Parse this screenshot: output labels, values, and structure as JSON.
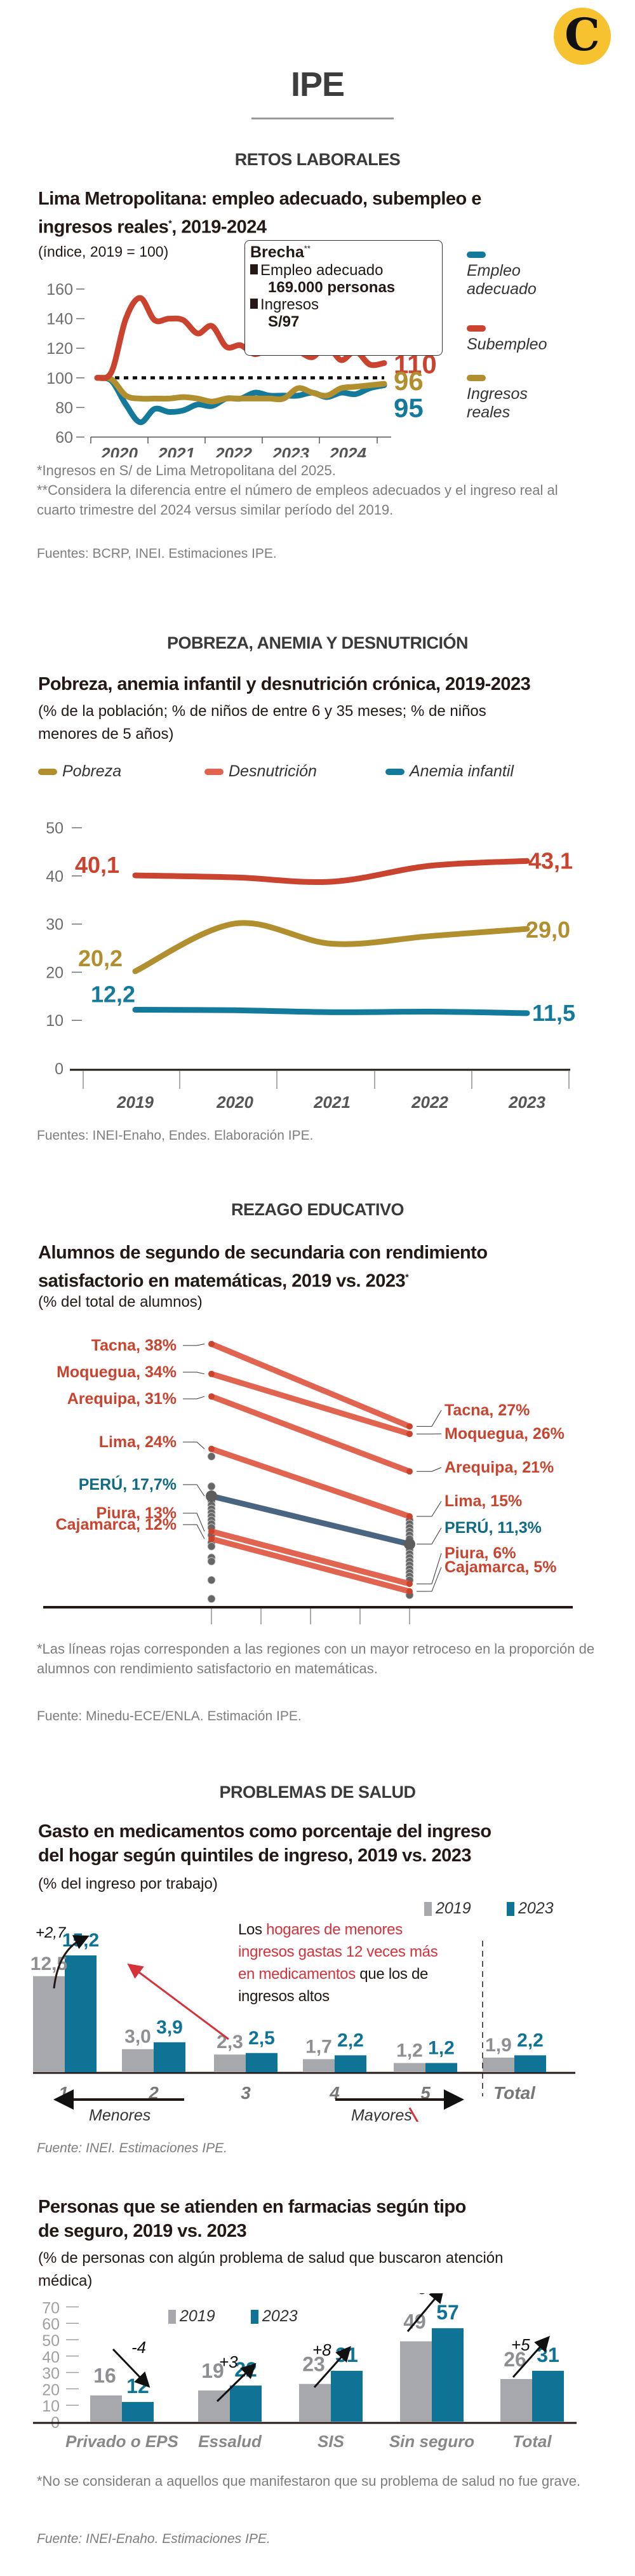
{
  "header": {
    "logo_letter": "C",
    "brand": "IPE"
  },
  "colors": {
    "empleo": "#137a9c",
    "subempleo": "#c9432e",
    "ingresos": "#b18f2e",
    "pobreza": "#b18f2e",
    "desnutricion": "#c9432e",
    "anemia": "#137a9c",
    "slope_red": "#e06450",
    "slope_peru": "#4a6580",
    "slope_grey": "#666666",
    "bar_2019": "#a6a8ab",
    "bar_2023": "#0f7396",
    "label_red": "#c9432e",
    "label_teal": "#0f6a85",
    "annotation_red": "#d6323a",
    "logo_yellow": "#f7c22f"
  },
  "sections": {
    "s1": "RETOS LABORALES",
    "s2": "POBREZA, ANEMIA Y DESNUTRICIÓN",
    "s3": "REZAGO EDUCATIVO",
    "s4": "PROBLEMAS DE SALUD"
  },
  "chart1": {
    "title": "Lima Metropolitana: empleo adecuado, subempleo e ingresos reales*, 2019-2024",
    "subtitle": "(índice, 2019 = 100)",
    "brecha": {
      "heading": "Brecha",
      "heading_mark": "**",
      "item1_label": "Empleo adecuado",
      "item1_value": "169.000 personas",
      "item2_label": "Ingresos",
      "item2_value": "S/97"
    },
    "legend": [
      {
        "label": "Empleo adecuado",
        "key": "empleo"
      },
      {
        "label": "Subempleo",
        "key": "subempleo"
      },
      {
        "label": "Ingresos reales",
        "key": "ingresos"
      }
    ],
    "end_labels": {
      "subempleo": "110",
      "ingresos": "96",
      "empleo": "95"
    },
    "note1": "*Ingresos en S/ de Lima Metropolitana del 2025.",
    "note2": "**Considera la diferencia entre el número de empleos adecuados y el ingreso real al cuarto trimestre del 2024 versus similar período del 2019.",
    "source": "Fuentes: BCRP, INEI. Estimaciones IPE."
  },
  "chart2": {
    "title": "Pobreza, anemia infantil y desnutrición crónica, 2019-2023",
    "subtitle": "(% de la población; % de niños de entre 6 y 35 meses; % de niños menores de 5 años)",
    "legend": [
      {
        "label": "Pobreza",
        "key": "pobreza"
      },
      {
        "label": "Desnutrición",
        "key": "desnutricion"
      },
      {
        "label": "Anemia infantil",
        "key": "anemia"
      }
    ],
    "labels": {
      "d_start": "40,1",
      "d_end": "43,1",
      "p_start": "20,2",
      "p_end": "29,0",
      "a_start": "12,2",
      "a_end": "11,5"
    },
    "source": "Fuentes: INEI-Enaho, Endes. Elaboración IPE."
  },
  "chart3": {
    "title": "Alumnos de segundo de secundaria con rendimiento satisfactorio en matemáticas, 2019 vs. 2023*",
    "subtitle": "(% del total de alumnos)",
    "note": "*Las líneas rojas corresponden a las regiones con un mayor retroceso en la proporción de alumnos con rendimiento satisfactorio en matemáticas.",
    "source": "Fuente: Minedu-ECE/ENLA. Estimación IPE."
  },
  "chart4": {
    "title": "Gasto en medicamentos como porcentaje del ingreso del hogar según quintiles de ingreso, 2019 vs. 2023",
    "subtitle": "(% del ingreso por trabajo)",
    "legend_2019": "2019",
    "legend_2023": "2023",
    "annotation_pre": "Los ",
    "annotation_red": "hogares de menores ingresos gastas 12 veces más en medicamentos",
    "annotation_post": " que los de ingresos altos",
    "change_label": "+2,7",
    "left_arrow_label": "Menores ingresos",
    "right_arrow_label": "Mayores ingresos",
    "source": "Fuente: INEI. Estimaciones IPE."
  },
  "chart5": {
    "title": "Personas que se atienden en farmacias según tipo de seguro, 2019 vs. 2023",
    "subtitle": "(% de personas con algún problema de salud que buscaron atención médica)",
    "legend_2019": "2019",
    "legend_2023": "2023",
    "note": "*No se consideran a aquellos que manifestaron que su problema de salud no fue grave.",
    "source": "Fuente: INEI-Enaho. Estimaciones IPE."
  },
  "chart_data": [
    {
      "type": "line",
      "title": "Lima Metropolitana: empleo adecuado, subempleo e ingresos reales*, 2019-2024",
      "ylabel": "índice, 2019 = 100",
      "ylim": [
        60,
        160
      ],
      "yticks": [
        60,
        80,
        100,
        120,
        140,
        160
      ],
      "xticks": [
        "2020",
        "2021",
        "2022",
        "2023",
        "2024"
      ],
      "x": [
        "2019-Q4",
        "2020-Q1",
        "2020-Q2",
        "2020-Q3",
        "2020-Q4",
        "2021-Q1",
        "2021-Q2",
        "2021-Q3",
        "2021-Q4",
        "2022-Q1",
        "2022-Q2",
        "2022-Q3",
        "2022-Q4",
        "2023-Q1",
        "2023-Q2",
        "2023-Q3",
        "2023-Q4",
        "2024-Q1",
        "2024-Q2",
        "2024-Q3",
        "2024-Q4"
      ],
      "reference_line": 100,
      "series": [
        {
          "name": "Subempleo",
          "key": "subempleo",
          "values": [
            100,
            104,
            140,
            154,
            139,
            140,
            139,
            130,
            135,
            121,
            122,
            116,
            120,
            120,
            118,
            114,
            122,
            112,
            118,
            109,
            110
          ]
        },
        {
          "name": "Empleo adecuado",
          "key": "empleo",
          "values": [
            100,
            98,
            82,
            70,
            79,
            77,
            78,
            82,
            81,
            86,
            86,
            90,
            88,
            88,
            88,
            90,
            87,
            90,
            89,
            93,
            95
          ]
        },
        {
          "name": "Ingresos reales",
          "key": "ingresos",
          "values": [
            100,
            99,
            88,
            86,
            86,
            86,
            87,
            86,
            84,
            86,
            86,
            86,
            86,
            86,
            93,
            90,
            88,
            93,
            94,
            95,
            96
          ]
        }
      ],
      "legend_position": "right"
    },
    {
      "type": "line",
      "title": "Pobreza, anemia infantil y desnutrición crónica, 2019-2023",
      "ylim": [
        0,
        50
      ],
      "yticks": [
        0,
        10,
        20,
        30,
        40,
        50
      ],
      "categories": [
        "2019",
        "2020",
        "2021",
        "2022",
        "2023"
      ],
      "series": [
        {
          "name": "Desnutrición",
          "key": "desnutricion",
          "values": [
            40.1,
            39.7,
            38.8,
            42.1,
            43.1
          ]
        },
        {
          "name": "Pobreza",
          "key": "pobreza",
          "values": [
            20.2,
            30.1,
            25.9,
            27.5,
            29.0
          ]
        },
        {
          "name": "Anemia infantil",
          "key": "anemia",
          "values": [
            12.2,
            12.1,
            11.7,
            11.8,
            11.5
          ]
        }
      ],
      "legend_position": "top"
    },
    {
      "type": "slope",
      "title": "Alumnos de segundo de secundaria con rendimiento satisfactorio en matemáticas, 2019 vs. 2023",
      "categories": [
        "2019",
        "2023"
      ],
      "highlighted": [
        {
          "name": "Tacna",
          "v2019": 38,
          "v2023": 27,
          "label2019": "Tacna, 38%",
          "label2023": "Tacna, 27%",
          "kind": "red"
        },
        {
          "name": "Moquegua",
          "v2019": 34,
          "v2023": 26,
          "label2019": "Moquegua, 34%",
          "label2023": "Moquegua, 26%",
          "kind": "red"
        },
        {
          "name": "Arequipa",
          "v2019": 31,
          "v2023": 21,
          "label2019": "Arequipa, 31%",
          "label2023": "Arequipa, 21%",
          "kind": "red"
        },
        {
          "name": "Lima",
          "v2019": 24,
          "v2023": 15,
          "label2019": "Lima, 24%",
          "label2023": "Lima, 15%",
          "kind": "red"
        },
        {
          "name": "PERÚ",
          "v2019": 17.7,
          "v2023": 11.3,
          "label2019": "PERÚ, 17,7%",
          "label2023": "PERÚ, 11,3%",
          "kind": "peru"
        },
        {
          "name": "Piura",
          "v2019": 13,
          "v2023": 6,
          "label2019": "Piura, 13%",
          "label2023": "Piura, 6%",
          "kind": "red"
        },
        {
          "name": "Cajamarca",
          "v2019": 12,
          "v2023": 5,
          "label2019": "Cajamarca, 12%",
          "label2023": "Cajamarca, 5%",
          "kind": "red"
        }
      ],
      "other_regions_2019": [
        23,
        19,
        17,
        16.5,
        16,
        15.5,
        15,
        14.5,
        14,
        13.5,
        12.5,
        11.5,
        11,
        9.5,
        9,
        6.5,
        4
      ],
      "other_regions_2023": [
        14.5,
        14,
        13.5,
        13,
        12.5,
        12,
        11,
        10.5,
        10,
        9.5,
        9,
        8.5,
        8,
        7.5,
        7,
        6.5,
        4.5
      ]
    },
    {
      "type": "bar",
      "title": "Gasto en medicamentos como porcentaje del ingreso del hogar según quintiles de ingreso, 2019 vs. 2023",
      "ylabel": "% del ingreso por trabajo",
      "categories": [
        "1",
        "2",
        "3",
        "4",
        "5",
        "Total"
      ],
      "series": [
        {
          "name": "2019",
          "values": [
            12.5,
            3.0,
            2.3,
            1.7,
            1.2,
            1.9
          ],
          "labels": [
            "12,5",
            "3,0",
            "2,3",
            "1,7",
            "1,2",
            "1,9"
          ]
        },
        {
          "name": "2023",
          "values": [
            15.2,
            3.9,
            2.5,
            2.2,
            1.2,
            2.2
          ],
          "labels": [
            "15,2",
            "3,9",
            "2,5",
            "2,2",
            "1,2",
            "2,2"
          ]
        }
      ],
      "legend_position": "top-right"
    },
    {
      "type": "bar",
      "title": "Personas que se atienden en farmacias según tipo de seguro, 2019 vs. 2023",
      "ylim": [
        0,
        70
      ],
      "yticks": [
        0,
        10,
        20,
        30,
        40,
        50,
        60,
        70
      ],
      "categories": [
        "Privado o EPS",
        "Essalud",
        "SIS",
        "Sin seguro",
        "Total"
      ],
      "series": [
        {
          "name": "2019",
          "values": [
            16,
            19,
            23,
            49,
            26
          ]
        },
        {
          "name": "2023",
          "values": [
            12,
            22,
            31,
            57,
            31
          ]
        }
      ],
      "changes": [
        "-4",
        "+3",
        "+8",
        "+8",
        "+5"
      ],
      "legend_position": "top"
    }
  ]
}
